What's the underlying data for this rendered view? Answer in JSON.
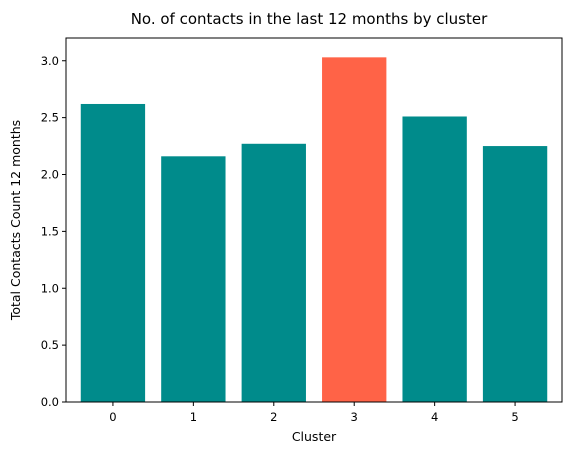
{
  "chart_data": {
    "type": "bar",
    "title": "No. of contacts in the last 12 months by cluster",
    "xlabel": "Cluster",
    "ylabel": "Total Contacts Count 12 months",
    "categories": [
      "0",
      "1",
      "2",
      "3",
      "4",
      "5"
    ],
    "values": [
      2.62,
      2.16,
      2.27,
      3.03,
      2.51,
      2.25
    ],
    "highlight_index": 3,
    "ylim": [
      0,
      3.2
    ],
    "yticks": [
      0.0,
      0.5,
      1.0,
      1.5,
      2.0,
      2.5,
      3.0
    ],
    "ytick_labels": [
      "0.0",
      "0.5",
      "1.0",
      "1.5",
      "2.0",
      "2.5",
      "3.0"
    ],
    "grid": false,
    "colors": {
      "bar": "#008b8b",
      "highlight": "#ff6347"
    }
  }
}
